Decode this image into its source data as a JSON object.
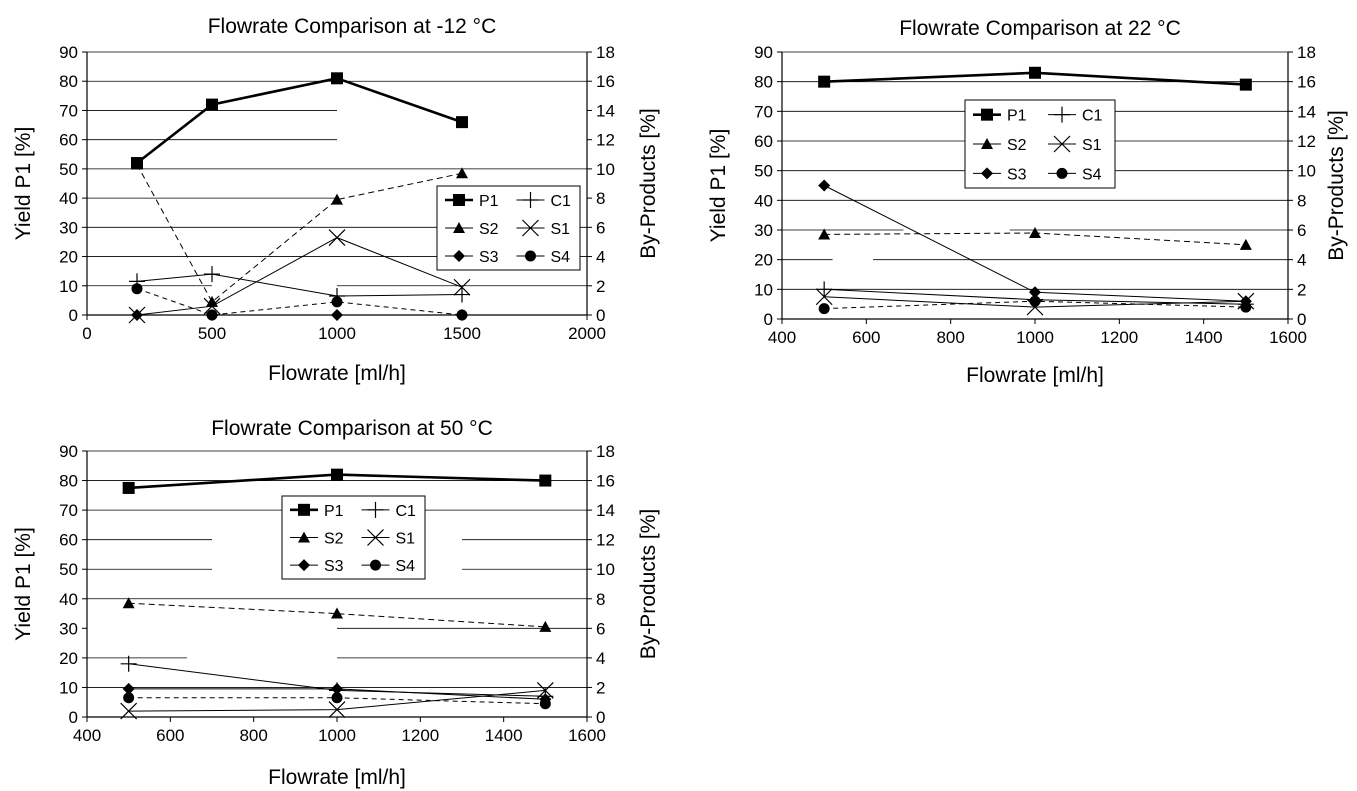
{
  "chart_data": [
    {
      "type": "line",
      "title": "Flowrate Comparison at -12 °C",
      "xlabel": "Flowrate [ml/h]",
      "ylabel": "Yield P1 [%]",
      "y2label": "By-Products [%]",
      "xlim": [
        0,
        2000
      ],
      "xticks": [
        0,
        500,
        1000,
        1500,
        2000
      ],
      "ylim": [
        0,
        90
      ],
      "yticks": [
        0,
        10,
        20,
        30,
        40,
        50,
        60,
        70,
        80,
        90
      ],
      "y2lim": [
        0,
        18
      ],
      "y2ticks": [
        0,
        2,
        4,
        6,
        8,
        10,
        12,
        14,
        16,
        18
      ],
      "legend_position": "lower-right",
      "series": [
        {
          "name": "P1",
          "axis": "left",
          "marker": "square",
          "x": [
            200,
            500,
            1000,
            1500
          ],
          "y": [
            52,
            72,
            81,
            66
          ]
        },
        {
          "name": "C1",
          "axis": "right",
          "marker": "plus",
          "x": [
            200,
            500,
            1000,
            1500
          ],
          "y": [
            2.3,
            2.8,
            1.3,
            1.4
          ]
        },
        {
          "name": "S2",
          "axis": "right",
          "marker": "triangle",
          "x": [
            200,
            500,
            1000,
            1500
          ],
          "y": [
            10.3,
            0.9,
            7.9,
            9.7
          ]
        },
        {
          "name": "S1",
          "axis": "right",
          "marker": "x",
          "x": [
            200,
            500,
            1000,
            1500
          ],
          "y": [
            0,
            0.6,
            5.3,
            1.9
          ]
        },
        {
          "name": "S3",
          "axis": "right",
          "marker": "diamond",
          "x": [
            200,
            500,
            1000,
            1500
          ],
          "y": [
            0,
            0,
            0,
            0
          ]
        },
        {
          "name": "S4",
          "axis": "right",
          "marker": "circle",
          "x": [
            200,
            500,
            1000,
            1500
          ],
          "y": [
            1.8,
            0,
            0.9,
            0
          ]
        }
      ]
    },
    {
      "type": "line",
      "title": "Flowrate Comparison at 22 °C",
      "xlabel": "Flowrate [ml/h]",
      "ylabel": "Yield P1 [%]",
      "y2label": "By-Products [%]",
      "xlim": [
        400,
        1600
      ],
      "xticks": [
        400,
        600,
        800,
        1000,
        1200,
        1400,
        1600
      ],
      "ylim": [
        0,
        90
      ],
      "yticks": [
        0,
        10,
        20,
        30,
        40,
        50,
        60,
        70,
        80,
        90
      ],
      "y2lim": [
        0,
        18
      ],
      "y2ticks": [
        0,
        2,
        4,
        6,
        8,
        10,
        12,
        14,
        16,
        18
      ],
      "legend_position": "upper-center",
      "series": [
        {
          "name": "P1",
          "axis": "left",
          "marker": "square",
          "x": [
            500,
            1000,
            1500
          ],
          "y": [
            80,
            83,
            79
          ]
        },
        {
          "name": "C1",
          "axis": "right",
          "marker": "plus",
          "x": [
            500,
            1000,
            1500
          ],
          "y": [
            2.0,
            1.3,
            1.0
          ]
        },
        {
          "name": "S2",
          "axis": "right",
          "marker": "triangle",
          "x": [
            500,
            1000,
            1500
          ],
          "y": [
            5.7,
            5.8,
            5.0
          ]
        },
        {
          "name": "S1",
          "axis": "right",
          "marker": "x",
          "x": [
            500,
            1000,
            1500
          ],
          "y": [
            1.5,
            0.8,
            1.2
          ]
        },
        {
          "name": "S3",
          "axis": "right",
          "marker": "diamond",
          "x": [
            500,
            1000,
            1500
          ],
          "y": [
            9.0,
            1.8,
            1.2
          ]
        },
        {
          "name": "S4",
          "axis": "right",
          "marker": "circle",
          "x": [
            500,
            1000,
            1500
          ],
          "y": [
            0.7,
            1.2,
            0.8
          ]
        }
      ]
    },
    {
      "type": "line",
      "title": "Flowrate Comparison at 50 °C",
      "xlabel": "Flowrate [ml/h]",
      "ylabel": "Yield P1 [%]",
      "y2label": "By-Products [%]",
      "xlim": [
        400,
        1600
      ],
      "xticks": [
        400,
        600,
        800,
        1000,
        1200,
        1400,
        1600
      ],
      "ylim": [
        0,
        90
      ],
      "yticks": [
        0,
        10,
        20,
        30,
        40,
        50,
        60,
        70,
        80,
        90
      ],
      "y2lim": [
        0,
        18
      ],
      "y2ticks": [
        0,
        2,
        4,
        6,
        8,
        10,
        12,
        14,
        16,
        18
      ],
      "legend_position": "upper-center",
      "series": [
        {
          "name": "P1",
          "axis": "left",
          "marker": "square",
          "x": [
            500,
            1000,
            1500
          ],
          "y": [
            77.5,
            82,
            80
          ]
        },
        {
          "name": "C1",
          "axis": "right",
          "marker": "plus",
          "x": [
            500,
            1000,
            1500
          ],
          "y": [
            3.6,
            1.8,
            1.4
          ]
        },
        {
          "name": "S2",
          "axis": "right",
          "marker": "triangle",
          "x": [
            500,
            1000,
            1500
          ],
          "y": [
            7.7,
            7.0,
            6.1
          ]
        },
        {
          "name": "S1",
          "axis": "right",
          "marker": "x",
          "x": [
            500,
            1000,
            1500
          ],
          "y": [
            0.4,
            0.5,
            1.8
          ]
        },
        {
          "name": "S3",
          "axis": "right",
          "marker": "diamond",
          "x": [
            500,
            1000,
            1500
          ],
          "y": [
            1.9,
            1.9,
            1.2
          ]
        },
        {
          "name": "S4",
          "axis": "right",
          "marker": "circle",
          "x": [
            500,
            1000,
            1500
          ],
          "y": [
            1.3,
            1.3,
            0.9
          ]
        }
      ]
    }
  ]
}
